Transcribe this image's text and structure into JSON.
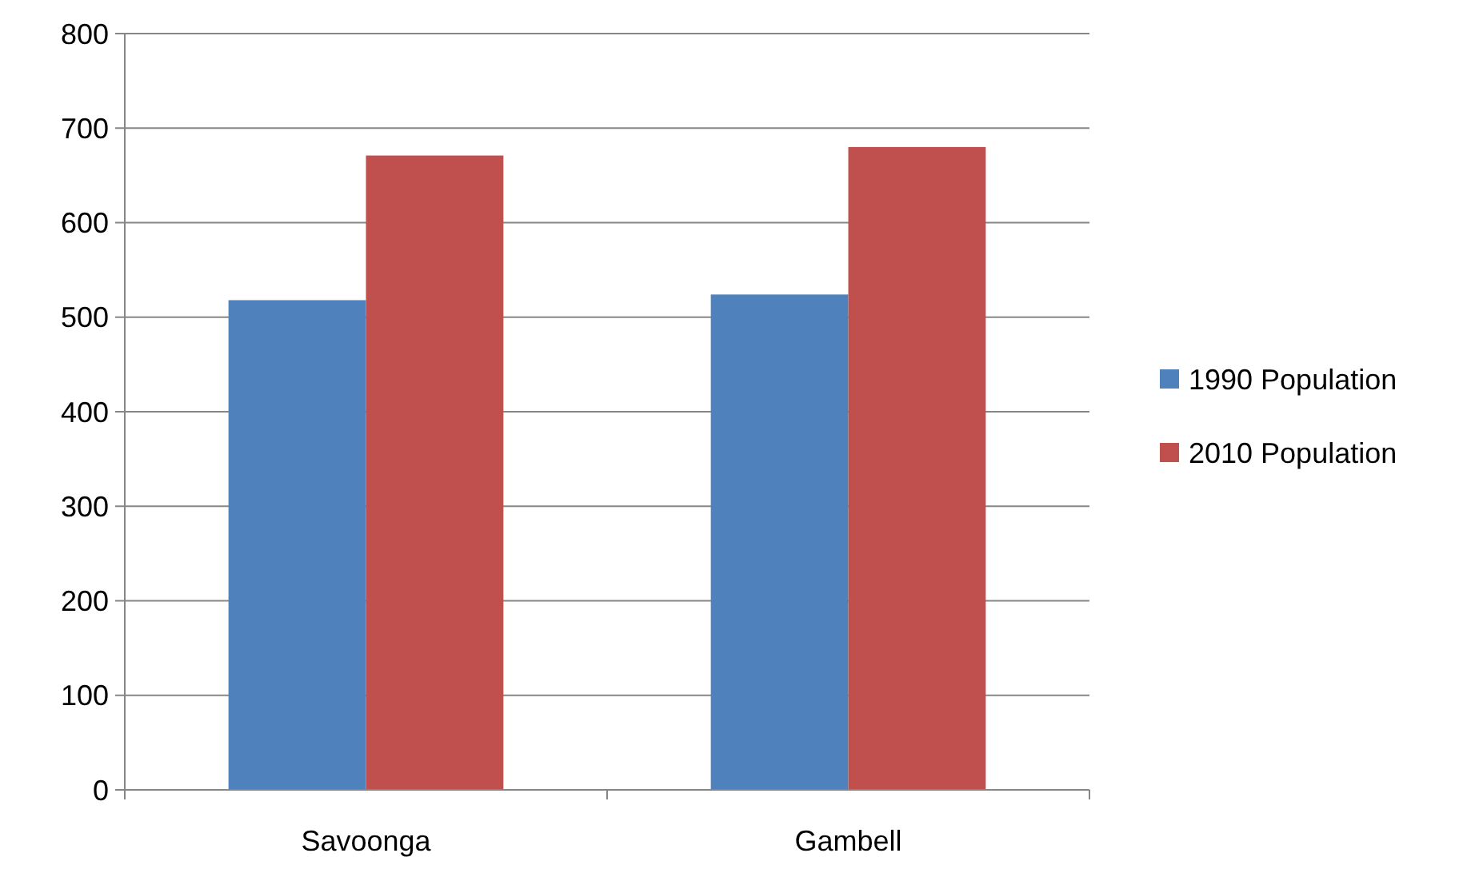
{
  "chart_data": {
    "type": "bar",
    "categories": [
      "Savoonga",
      "Gambell"
    ],
    "series": [
      {
        "name": "1990 Population",
        "color": "#4f81bd",
        "values": [
          518,
          524
        ]
      },
      {
        "name": "2010 Population",
        "color": "#c0504d",
        "values": [
          671,
          680
        ]
      }
    ],
    "ylim": [
      0,
      800
    ],
    "yticks": [
      0,
      100,
      200,
      300,
      400,
      500,
      600,
      700,
      800
    ],
    "grid": "y",
    "legend": "right"
  }
}
